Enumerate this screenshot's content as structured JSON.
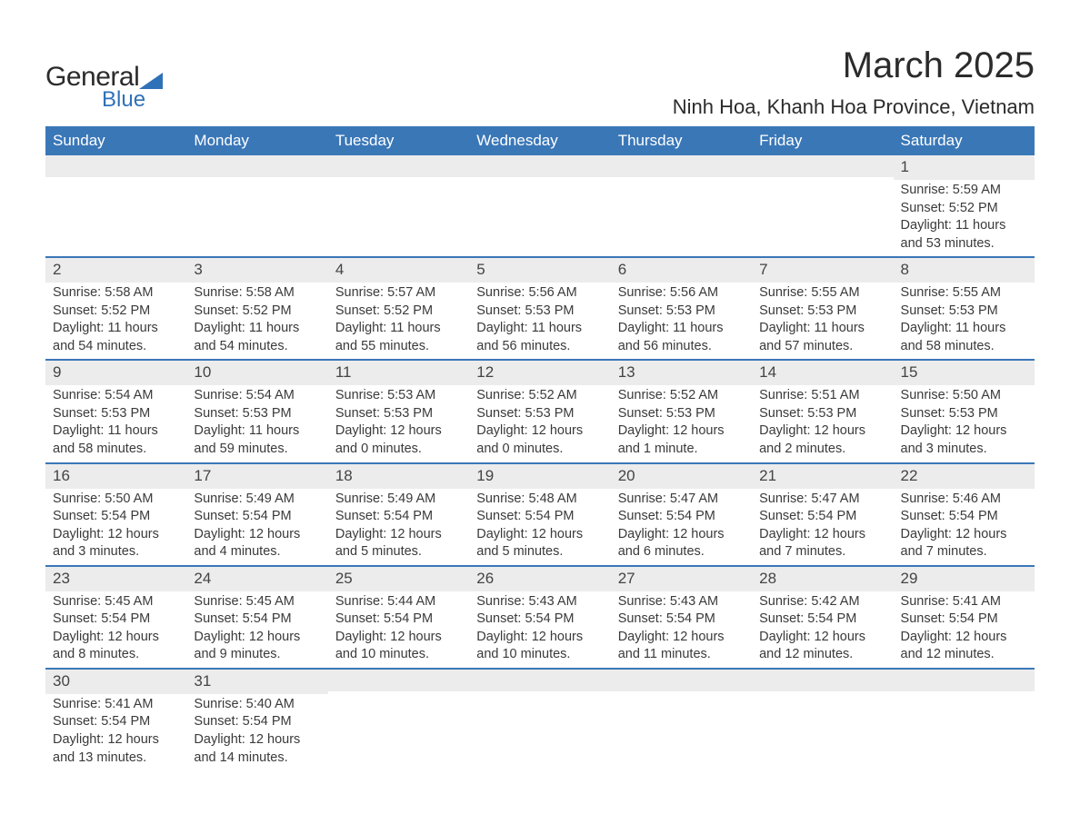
{
  "logo": {
    "text1": "General",
    "text2": "Blue"
  },
  "title": "March 2025",
  "location": "Ninh Hoa, Khanh Hoa Province, Vietnam",
  "colors": {
    "header_bg": "#3a77b7",
    "header_text": "#ffffff",
    "daynum_bg": "#ececec",
    "row_border": "#3a77b7",
    "text": "#3a3a3a",
    "logo_blue": "#2f71b8"
  },
  "typography": {
    "title_fontsize": 40,
    "location_fontsize": 22,
    "weekday_fontsize": 17,
    "daynum_fontsize": 17,
    "body_fontsize": 14.5
  },
  "labels": {
    "sunrise": "Sunrise:",
    "sunset": "Sunset:",
    "daylight": "Daylight:"
  },
  "weekdays": [
    "Sunday",
    "Monday",
    "Tuesday",
    "Wednesday",
    "Thursday",
    "Friday",
    "Saturday"
  ],
  "weeks": [
    [
      {
        "day": "",
        "sunrise": "",
        "sunset": "",
        "daylight": ""
      },
      {
        "day": "",
        "sunrise": "",
        "sunset": "",
        "daylight": ""
      },
      {
        "day": "",
        "sunrise": "",
        "sunset": "",
        "daylight": ""
      },
      {
        "day": "",
        "sunrise": "",
        "sunset": "",
        "daylight": ""
      },
      {
        "day": "",
        "sunrise": "",
        "sunset": "",
        "daylight": ""
      },
      {
        "day": "",
        "sunrise": "",
        "sunset": "",
        "daylight": ""
      },
      {
        "day": "1",
        "sunrise": "5:59 AM",
        "sunset": "5:52 PM",
        "daylight": "11 hours and 53 minutes."
      }
    ],
    [
      {
        "day": "2",
        "sunrise": "5:58 AM",
        "sunset": "5:52 PM",
        "daylight": "11 hours and 54 minutes."
      },
      {
        "day": "3",
        "sunrise": "5:58 AM",
        "sunset": "5:52 PM",
        "daylight": "11 hours and 54 minutes."
      },
      {
        "day": "4",
        "sunrise": "5:57 AM",
        "sunset": "5:52 PM",
        "daylight": "11 hours and 55 minutes."
      },
      {
        "day": "5",
        "sunrise": "5:56 AM",
        "sunset": "5:53 PM",
        "daylight": "11 hours and 56 minutes."
      },
      {
        "day": "6",
        "sunrise": "5:56 AM",
        "sunset": "5:53 PM",
        "daylight": "11 hours and 56 minutes."
      },
      {
        "day": "7",
        "sunrise": "5:55 AM",
        "sunset": "5:53 PM",
        "daylight": "11 hours and 57 minutes."
      },
      {
        "day": "8",
        "sunrise": "5:55 AM",
        "sunset": "5:53 PM",
        "daylight": "11 hours and 58 minutes."
      }
    ],
    [
      {
        "day": "9",
        "sunrise": "5:54 AM",
        "sunset": "5:53 PM",
        "daylight": "11 hours and 58 minutes."
      },
      {
        "day": "10",
        "sunrise": "5:54 AM",
        "sunset": "5:53 PM",
        "daylight": "11 hours and 59 minutes."
      },
      {
        "day": "11",
        "sunrise": "5:53 AM",
        "sunset": "5:53 PM",
        "daylight": "12 hours and 0 minutes."
      },
      {
        "day": "12",
        "sunrise": "5:52 AM",
        "sunset": "5:53 PM",
        "daylight": "12 hours and 0 minutes."
      },
      {
        "day": "13",
        "sunrise": "5:52 AM",
        "sunset": "5:53 PM",
        "daylight": "12 hours and 1 minute."
      },
      {
        "day": "14",
        "sunrise": "5:51 AM",
        "sunset": "5:53 PM",
        "daylight": "12 hours and 2 minutes."
      },
      {
        "day": "15",
        "sunrise": "5:50 AM",
        "sunset": "5:53 PM",
        "daylight": "12 hours and 3 minutes."
      }
    ],
    [
      {
        "day": "16",
        "sunrise": "5:50 AM",
        "sunset": "5:54 PM",
        "daylight": "12 hours and 3 minutes."
      },
      {
        "day": "17",
        "sunrise": "5:49 AM",
        "sunset": "5:54 PM",
        "daylight": "12 hours and 4 minutes."
      },
      {
        "day": "18",
        "sunrise": "5:49 AM",
        "sunset": "5:54 PM",
        "daylight": "12 hours and 5 minutes."
      },
      {
        "day": "19",
        "sunrise": "5:48 AM",
        "sunset": "5:54 PM",
        "daylight": "12 hours and 5 minutes."
      },
      {
        "day": "20",
        "sunrise": "5:47 AM",
        "sunset": "5:54 PM",
        "daylight": "12 hours and 6 minutes."
      },
      {
        "day": "21",
        "sunrise": "5:47 AM",
        "sunset": "5:54 PM",
        "daylight": "12 hours and 7 minutes."
      },
      {
        "day": "22",
        "sunrise": "5:46 AM",
        "sunset": "5:54 PM",
        "daylight": "12 hours and 7 minutes."
      }
    ],
    [
      {
        "day": "23",
        "sunrise": "5:45 AM",
        "sunset": "5:54 PM",
        "daylight": "12 hours and 8 minutes."
      },
      {
        "day": "24",
        "sunrise": "5:45 AM",
        "sunset": "5:54 PM",
        "daylight": "12 hours and 9 minutes."
      },
      {
        "day": "25",
        "sunrise": "5:44 AM",
        "sunset": "5:54 PM",
        "daylight": "12 hours and 10 minutes."
      },
      {
        "day": "26",
        "sunrise": "5:43 AM",
        "sunset": "5:54 PM",
        "daylight": "12 hours and 10 minutes."
      },
      {
        "day": "27",
        "sunrise": "5:43 AM",
        "sunset": "5:54 PM",
        "daylight": "12 hours and 11 minutes."
      },
      {
        "day": "28",
        "sunrise": "5:42 AM",
        "sunset": "5:54 PM",
        "daylight": "12 hours and 12 minutes."
      },
      {
        "day": "29",
        "sunrise": "5:41 AM",
        "sunset": "5:54 PM",
        "daylight": "12 hours and 12 minutes."
      }
    ],
    [
      {
        "day": "30",
        "sunrise": "5:41 AM",
        "sunset": "5:54 PM",
        "daylight": "12 hours and 13 minutes."
      },
      {
        "day": "31",
        "sunrise": "5:40 AM",
        "sunset": "5:54 PM",
        "daylight": "12 hours and 14 minutes."
      },
      {
        "day": "",
        "sunrise": "",
        "sunset": "",
        "daylight": ""
      },
      {
        "day": "",
        "sunrise": "",
        "sunset": "",
        "daylight": ""
      },
      {
        "day": "",
        "sunrise": "",
        "sunset": "",
        "daylight": ""
      },
      {
        "day": "",
        "sunrise": "",
        "sunset": "",
        "daylight": ""
      },
      {
        "day": "",
        "sunrise": "",
        "sunset": "",
        "daylight": ""
      }
    ]
  ]
}
